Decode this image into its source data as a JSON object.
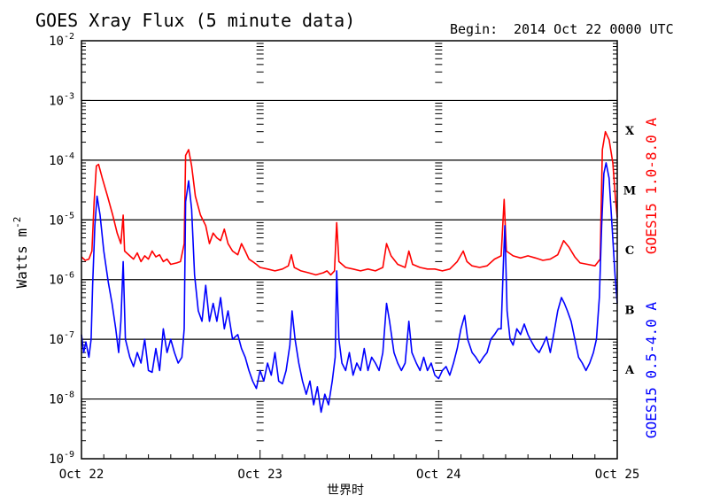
{
  "chart_data": {
    "type": "line",
    "title": "GOES Xray Flux (5 minute data)",
    "begin_label": "Begin:",
    "begin_value": "2014 Oct 22 0000 UTC",
    "ylabel": "Watts m",
    "ylabel_sup": "-2",
    "xlabel": "世界时",
    "y_scale": "log",
    "ylim": [
      1e-09,
      0.01
    ],
    "y_ticks": [
      {
        "value": 0.01,
        "label": "10",
        "exp": "-2"
      },
      {
        "value": 0.001,
        "label": "10",
        "exp": "-3"
      },
      {
        "value": 0.0001,
        "label": "10",
        "exp": "-4"
      },
      {
        "value": 1e-05,
        "label": "10",
        "exp": "-5"
      },
      {
        "value": 1e-06,
        "label": "10",
        "exp": "-6"
      },
      {
        "value": 1e-07,
        "label": "10",
        "exp": "-7"
      },
      {
        "value": 1e-08,
        "label": "10",
        "exp": "-8"
      },
      {
        "value": 1e-09,
        "label": "10",
        "exp": "-9"
      }
    ],
    "xlim": [
      0,
      72
    ],
    "x_unit": "hours since begin",
    "x_ticks": [
      {
        "value": 0,
        "label": "Oct 22"
      },
      {
        "value": 24,
        "label": "Oct 23"
      },
      {
        "value": 48,
        "label": "Oct 24"
      },
      {
        "value": 72,
        "label": "Oct 25"
      }
    ],
    "grid_lines": [
      0.001,
      0.0001,
      1e-05,
      1e-06,
      1e-07,
      1e-08
    ],
    "flare_classes": [
      {
        "label": "X",
        "value": 0.000316
      },
      {
        "label": "M",
        "value": 3.16e-05
      },
      {
        "label": "C",
        "value": 3.16e-06
      },
      {
        "label": "B",
        "value": 3.16e-07
      },
      {
        "label": "A",
        "value": 3.16e-08
      }
    ],
    "series": [
      {
        "name": "GOES15 1.0-8.0 A",
        "color": "#ff0000",
        "points": [
          [
            0,
            2.4e-06
          ],
          [
            0.5,
            2.1e-06
          ],
          [
            1,
            2.2e-06
          ],
          [
            1.4,
            3e-06
          ],
          [
            1.7,
            2e-05
          ],
          [
            2,
            8e-05
          ],
          [
            2.3,
            8.5e-05
          ],
          [
            2.8,
            5e-05
          ],
          [
            3.5,
            2.5e-05
          ],
          [
            4.2,
            1.2e-05
          ],
          [
            4.8,
            6e-06
          ],
          [
            5.3,
            4e-06
          ],
          [
            5.6,
            1.2e-05
          ],
          [
            5.8,
            3e-06
          ],
          [
            6.5,
            2.5e-06
          ],
          [
            7,
            2.2e-06
          ],
          [
            7.5,
            2.8e-06
          ],
          [
            8,
            2e-06
          ],
          [
            8.5,
            2.5e-06
          ],
          [
            9,
            2.2e-06
          ],
          [
            9.5,
            3e-06
          ],
          [
            10,
            2.4e-06
          ],
          [
            10.5,
            2.6e-06
          ],
          [
            11,
            2e-06
          ],
          [
            11.5,
            2.2e-06
          ],
          [
            12,
            1.8e-06
          ],
          [
            12.8,
            1.9e-06
          ],
          [
            13.3,
            2e-06
          ],
          [
            13.8,
            4e-06
          ],
          [
            14,
            0.00012
          ],
          [
            14.4,
            0.00015
          ],
          [
            14.8,
            8e-05
          ],
          [
            15.3,
            2.5e-05
          ],
          [
            16,
            1.2e-05
          ],
          [
            16.7,
            8e-06
          ],
          [
            17.2,
            4e-06
          ],
          [
            17.7,
            6e-06
          ],
          [
            18.2,
            5e-06
          ],
          [
            18.7,
            4.5e-06
          ],
          [
            19.2,
            7e-06
          ],
          [
            19.7,
            4e-06
          ],
          [
            20.3,
            3e-06
          ],
          [
            21,
            2.6e-06
          ],
          [
            21.5,
            4e-06
          ],
          [
            22,
            3e-06
          ],
          [
            22.5,
            2.2e-06
          ],
          [
            23,
            2e-06
          ],
          [
            23.5,
            1.8e-06
          ],
          [
            24,
            1.6e-06
          ],
          [
            25,
            1.5e-06
          ],
          [
            26,
            1.4e-06
          ],
          [
            27,
            1.5e-06
          ],
          [
            27.8,
            1.7e-06
          ],
          [
            28.2,
            2.6e-06
          ],
          [
            28.6,
            1.6e-06
          ],
          [
            29.5,
            1.4e-06
          ],
          [
            30.5,
            1.3e-06
          ],
          [
            31.5,
            1.2e-06
          ],
          [
            32.5,
            1.3e-06
          ],
          [
            33,
            1.4e-06
          ],
          [
            33.5,
            1.2e-06
          ],
          [
            34,
            1.4e-06
          ],
          [
            34.3,
            9e-06
          ],
          [
            34.6,
            2e-06
          ],
          [
            35.5,
            1.6e-06
          ],
          [
            36.5,
            1.5e-06
          ],
          [
            37.5,
            1.4e-06
          ],
          [
            38.5,
            1.5e-06
          ],
          [
            39.5,
            1.4e-06
          ],
          [
            40.5,
            1.6e-06
          ],
          [
            41,
            4e-06
          ],
          [
            41.6,
            2.5e-06
          ],
          [
            42.5,
            1.8e-06
          ],
          [
            43.5,
            1.6e-06
          ],
          [
            44,
            3e-06
          ],
          [
            44.5,
            1.8e-06
          ],
          [
            45.5,
            1.6e-06
          ],
          [
            46.5,
            1.5e-06
          ],
          [
            47.5,
            1.5e-06
          ],
          [
            48.5,
            1.4e-06
          ],
          [
            49.5,
            1.5e-06
          ],
          [
            50.5,
            2e-06
          ],
          [
            51.3,
            3e-06
          ],
          [
            51.8,
            2e-06
          ],
          [
            52.5,
            1.7e-06
          ],
          [
            53.5,
            1.6e-06
          ],
          [
            54.5,
            1.7e-06
          ],
          [
            55.5,
            2.2e-06
          ],
          [
            56.4,
            2.5e-06
          ],
          [
            56.8,
            2.2e-05
          ],
          [
            57.1,
            3e-06
          ],
          [
            58,
            2.5e-06
          ],
          [
            59,
            2.3e-06
          ],
          [
            60,
            2.5e-06
          ],
          [
            61,
            2.3e-06
          ],
          [
            62,
            2.1e-06
          ],
          [
            63,
            2.2e-06
          ],
          [
            64,
            2.6e-06
          ],
          [
            64.8,
            4.5e-06
          ],
          [
            65.5,
            3.5e-06
          ],
          [
            66.3,
            2.4e-06
          ],
          [
            67,
            1.9e-06
          ],
          [
            68,
            1.8e-06
          ],
          [
            69,
            1.7e-06
          ],
          [
            69.7,
            2.2e-06
          ],
          [
            70,
            0.00015
          ],
          [
            70.4,
            0.0003
          ],
          [
            70.9,
            0.00022
          ],
          [
            71.4,
            9e-05
          ],
          [
            71.8,
            2e-05
          ],
          [
            72,
            1.1e-05
          ]
        ]
      },
      {
        "name": "GOES15 0.5-4.0 A",
        "color": "#0000ff",
        "points": [
          [
            0,
            1.2e-07
          ],
          [
            0.3,
            6e-08
          ],
          [
            0.6,
            9e-08
          ],
          [
            1,
            5e-08
          ],
          [
            1.3,
            1e-07
          ],
          [
            1.5,
            8e-07
          ],
          [
            1.8,
            8e-06
          ],
          [
            2.1,
            2.5e-05
          ],
          [
            2.5,
            1.2e-05
          ],
          [
            3,
            3e-06
          ],
          [
            3.6,
            9e-07
          ],
          [
            4.1,
            4e-07
          ],
          [
            4.6,
            1.5e-07
          ],
          [
            5,
            6e-08
          ],
          [
            5.3,
            2e-07
          ],
          [
            5.6,
            2e-06
          ],
          [
            5.9,
            1e-07
          ],
          [
            6.5,
            5e-08
          ],
          [
            7,
            3.5e-08
          ],
          [
            7.5,
            6e-08
          ],
          [
            8,
            4e-08
          ],
          [
            8.5,
            1e-07
          ],
          [
            9,
            3e-08
          ],
          [
            9.5,
            2.8e-08
          ],
          [
            10,
            7e-08
          ],
          [
            10.5,
            3e-08
          ],
          [
            11,
            1.5e-07
          ],
          [
            11.5,
            6e-08
          ],
          [
            12,
            1e-07
          ],
          [
            12.5,
            6e-08
          ],
          [
            13,
            4e-08
          ],
          [
            13.5,
            5e-08
          ],
          [
            13.8,
            1.5e-07
          ],
          [
            14,
            2e-05
          ],
          [
            14.4,
            4.5e-05
          ],
          [
            14.8,
            1.5e-05
          ],
          [
            15.2,
            1.2e-06
          ],
          [
            15.7,
            3e-07
          ],
          [
            16.2,
            2e-07
          ],
          [
            16.7,
            8e-07
          ],
          [
            17.2,
            2e-07
          ],
          [
            17.7,
            4e-07
          ],
          [
            18.2,
            2e-07
          ],
          [
            18.7,
            5e-07
          ],
          [
            19.2,
            1.5e-07
          ],
          [
            19.7,
            3e-07
          ],
          [
            20.3,
            1e-07
          ],
          [
            21,
            1.2e-07
          ],
          [
            21.5,
            7e-08
          ],
          [
            22,
            5e-08
          ],
          [
            22.5,
            3e-08
          ],
          [
            23,
            2e-08
          ],
          [
            23.5,
            1.5e-08
          ],
          [
            24,
            3e-08
          ],
          [
            24.5,
            2e-08
          ],
          [
            25,
            4e-08
          ],
          [
            25.5,
            2.5e-08
          ],
          [
            26,
            6e-08
          ],
          [
            26.5,
            2e-08
          ],
          [
            27,
            1.8e-08
          ],
          [
            27.5,
            3e-08
          ],
          [
            28,
            8e-08
          ],
          [
            28.3,
            3e-07
          ],
          [
            28.7,
            1e-07
          ],
          [
            29.2,
            4e-08
          ],
          [
            29.7,
            2e-08
          ],
          [
            30.2,
            1.2e-08
          ],
          [
            30.7,
            2e-08
          ],
          [
            31.2,
            8e-09
          ],
          [
            31.7,
            1.6e-08
          ],
          [
            32.2,
            6e-09
          ],
          [
            32.7,
            1.2e-08
          ],
          [
            33.2,
            8e-09
          ],
          [
            33.7,
            2e-08
          ],
          [
            34.1,
            5e-08
          ],
          [
            34.3,
            1.4e-06
          ],
          [
            34.6,
            1e-07
          ],
          [
            35,
            4e-08
          ],
          [
            35.5,
            3e-08
          ],
          [
            36,
            6e-08
          ],
          [
            36.5,
            2.5e-08
          ],
          [
            37,
            4e-08
          ],
          [
            37.5,
            3e-08
          ],
          [
            38,
            7e-08
          ],
          [
            38.5,
            3e-08
          ],
          [
            39,
            5e-08
          ],
          [
            39.5,
            4e-08
          ],
          [
            40,
            3e-08
          ],
          [
            40.5,
            6e-08
          ],
          [
            41,
            4e-07
          ],
          [
            41.4,
            2e-07
          ],
          [
            42,
            6e-08
          ],
          [
            42.5,
            4e-08
          ],
          [
            43,
            3e-08
          ],
          [
            43.5,
            4e-08
          ],
          [
            44,
            2e-07
          ],
          [
            44.4,
            6e-08
          ],
          [
            45,
            4e-08
          ],
          [
            45.5,
            3e-08
          ],
          [
            46,
            5e-08
          ],
          [
            46.5,
            3e-08
          ],
          [
            47,
            4e-08
          ],
          [
            47.5,
            2.5e-08
          ],
          [
            48,
            2.2e-08
          ],
          [
            48.5,
            3e-08
          ],
          [
            49,
            3.5e-08
          ],
          [
            49.5,
            2.5e-08
          ],
          [
            50,
            4e-08
          ],
          [
            50.5,
            7e-08
          ],
          [
            51,
            1.5e-07
          ],
          [
            51.5,
            2.5e-07
          ],
          [
            51.9,
            1e-07
          ],
          [
            52.5,
            6e-08
          ],
          [
            53,
            5e-08
          ],
          [
            53.5,
            4e-08
          ],
          [
            54,
            5e-08
          ],
          [
            54.5,
            6e-08
          ],
          [
            55,
            1e-07
          ],
          [
            55.5,
            1.2e-07
          ],
          [
            56,
            1.5e-07
          ],
          [
            56.4,
            1.5e-07
          ],
          [
            56.7,
            1.8e-06
          ],
          [
            56.9,
            8e-06
          ],
          [
            57.2,
            3e-07
          ],
          [
            57.6,
            1e-07
          ],
          [
            58,
            8e-08
          ],
          [
            58.5,
            1.5e-07
          ],
          [
            59,
            1.2e-07
          ],
          [
            59.5,
            1.8e-07
          ],
          [
            60,
            1.2e-07
          ],
          [
            60.5,
            9e-08
          ],
          [
            61,
            7e-08
          ],
          [
            61.5,
            6e-08
          ],
          [
            62,
            8e-08
          ],
          [
            62.5,
            1.1e-07
          ],
          [
            63,
            6e-08
          ],
          [
            63.5,
            1.3e-07
          ],
          [
            64,
            3e-07
          ],
          [
            64.5,
            5e-07
          ],
          [
            64.9,
            4e-07
          ],
          [
            65.3,
            3e-07
          ],
          [
            65.8,
            2e-07
          ],
          [
            66.3,
            1e-07
          ],
          [
            66.8,
            5e-08
          ],
          [
            67.3,
            4e-08
          ],
          [
            67.8,
            3e-08
          ],
          [
            68.3,
            4e-08
          ],
          [
            68.8,
            6e-08
          ],
          [
            69.2,
            1e-07
          ],
          [
            69.6,
            5e-07
          ],
          [
            69.9,
            8e-06
          ],
          [
            70.2,
            6e-05
          ],
          [
            70.5,
            9e-05
          ],
          [
            70.9,
            5e-05
          ],
          [
            71.3,
            8e-06
          ],
          [
            71.7,
            1.2e-06
          ],
          [
            72,
            4e-07
          ]
        ]
      }
    ]
  }
}
